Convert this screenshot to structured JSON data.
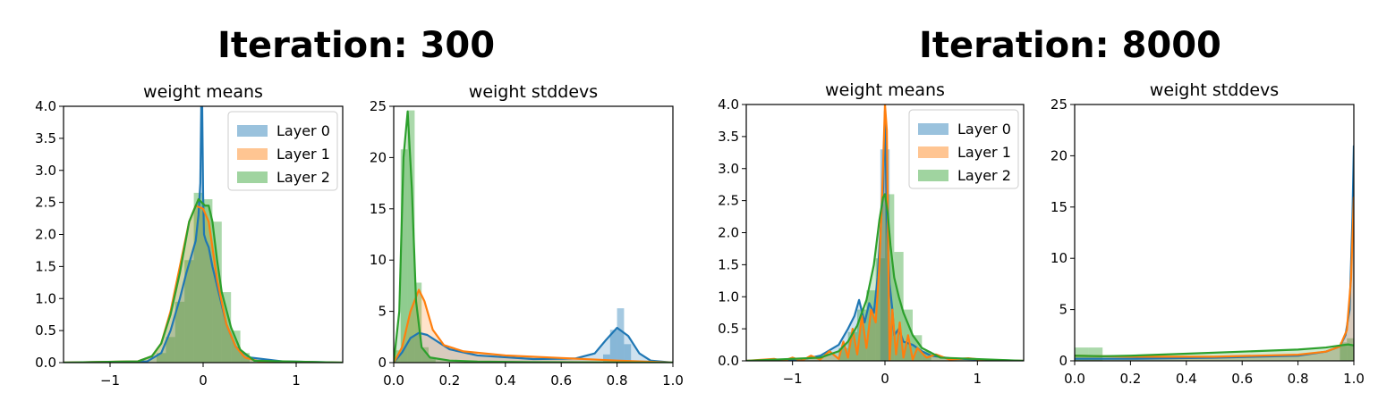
{
  "figures": [
    {
      "title": "Iteration: 300"
    },
    {
      "title": "Iteration: 8000"
    }
  ],
  "colors": {
    "layer0": "#1f77b4",
    "layer1": "#ff7f0e",
    "layer2": "#2ca02c"
  },
  "chart_data": [
    {
      "type": "area",
      "title": "weight means",
      "xlabel": "",
      "ylabel": "",
      "xlim": [
        -1.5,
        1.5
      ],
      "ylim": [
        0,
        4
      ],
      "xticks": [
        -1,
        0,
        1
      ],
      "xticklabels": [
        "−1",
        "0",
        "1"
      ],
      "yticks": [
        0,
        0.5,
        1,
        1.5,
        2,
        2.5,
        3,
        3.5,
        4
      ],
      "yticklabels": [
        "0.0",
        "0.5",
        "1.0",
        "1.5",
        "2.0",
        "2.5",
        "3.0",
        "3.5",
        "4.0"
      ],
      "legend": "top-right",
      "legend_labels": [
        "Layer 0",
        "Layer 1",
        "Layer 2"
      ],
      "series": [
        {
          "name": "Layer 0",
          "x": [
            -1.5,
            -0.6,
            -0.45,
            -0.35,
            -0.25,
            -0.18,
            -0.12,
            -0.08,
            -0.05,
            -0.03,
            -0.02,
            -0.01,
            0,
            0.01,
            0.03,
            0.06,
            0.1,
            0.15,
            0.25,
            0.35,
            0.5,
            0.85,
            1.5
          ],
          "y": [
            0,
            0.02,
            0.15,
            0.5,
            1.0,
            1.4,
            1.7,
            1.9,
            2.3,
            2.8,
            4.2,
            4.2,
            2.6,
            2.0,
            1.9,
            1.8,
            1.5,
            1.2,
            0.6,
            0.25,
            0.08,
            0.02,
            0
          ]
        },
        {
          "name": "Layer 1",
          "x": [
            -1.5,
            -0.7,
            -0.55,
            -0.45,
            -0.35,
            -0.25,
            -0.15,
            -0.08,
            0,
            0.06,
            0.1,
            0.15,
            0.25,
            0.35,
            0.45,
            0.6,
            1.5
          ],
          "y": [
            0,
            0.02,
            0.1,
            0.3,
            0.8,
            1.5,
            2.2,
            2.45,
            2.4,
            2.2,
            1.8,
            1.3,
            0.6,
            0.25,
            0.08,
            0.02,
            0
          ]
        },
        {
          "name": "Layer 2",
          "x": [
            -1.5,
            -0.7,
            -0.55,
            -0.45,
            -0.35,
            -0.25,
            -0.15,
            -0.05,
            0.02,
            0.06,
            0.1,
            0.15,
            0.2,
            0.3,
            0.4,
            0.55,
            1.5
          ],
          "y": [
            0,
            0.02,
            0.1,
            0.3,
            0.75,
            1.4,
            2.2,
            2.55,
            2.45,
            2.45,
            2.2,
            1.6,
            1.1,
            0.55,
            0.2,
            0.03,
            0
          ]
        }
      ],
      "histograms": [
        {
          "name": "Layer 2",
          "x": [
            -0.5,
            -0.4,
            -0.3,
            -0.2,
            -0.1,
            0,
            0.1,
            0.2,
            0.3,
            0.4
          ],
          "y": [
            0.15,
            0.4,
            0.95,
            1.6,
            2.65,
            2.55,
            2.2,
            1.1,
            0.5,
            0.15
          ]
        }
      ]
    },
    {
      "type": "area",
      "title": "weight stddevs",
      "xlabel": "",
      "ylabel": "",
      "xlim": [
        0,
        1
      ],
      "ylim": [
        0,
        25
      ],
      "xticks": [
        0,
        0.2,
        0.4,
        0.6,
        0.8,
        1.0
      ],
      "xticklabels": [
        "0.0",
        "0.2",
        "0.4",
        "0.6",
        "0.8",
        "1.0"
      ],
      "yticks": [
        0,
        5,
        10,
        15,
        20,
        25
      ],
      "yticklabels": [
        "0",
        "5",
        "10",
        "15",
        "20",
        "25"
      ],
      "series": [
        {
          "name": "Layer 0",
          "x": [
            0,
            0.03,
            0.06,
            0.09,
            0.12,
            0.16,
            0.2,
            0.3,
            0.5,
            0.65,
            0.72,
            0.76,
            0.8,
            0.84,
            0.88,
            0.92,
            1.0
          ],
          "y": [
            0,
            1.0,
            2.4,
            2.9,
            2.7,
            2.0,
            1.3,
            0.7,
            0.35,
            0.4,
            0.9,
            2.2,
            3.4,
            2.6,
            0.9,
            0.2,
            0
          ]
        },
        {
          "name": "Layer 1",
          "x": [
            0,
            0.03,
            0.06,
            0.09,
            0.11,
            0.14,
            0.18,
            0.25,
            0.4,
            0.6,
            0.8,
            1.0
          ],
          "y": [
            0,
            1.5,
            5.0,
            7.1,
            6.0,
            3.2,
            1.7,
            1.1,
            0.7,
            0.45,
            0.2,
            0
          ]
        },
        {
          "name": "Layer 2",
          "x": [
            0,
            0.02,
            0.035,
            0.05,
            0.065,
            0.08,
            0.1,
            0.13,
            0.2,
            0.3,
            0.5,
            1.0
          ],
          "y": [
            0,
            5.0,
            20.0,
            24.5,
            17.0,
            6.0,
            1.5,
            0.5,
            0.2,
            0.1,
            0.05,
            0
          ]
        }
      ],
      "histograms": [
        {
          "name": "Layer 2",
          "x": [
            0.0,
            0.025,
            0.05,
            0.075,
            0.1,
            0.125
          ],
          "y": [
            1.2,
            20.8,
            24.6,
            7.8,
            1.5,
            0.5
          ]
        },
        {
          "name": "Layer 0",
          "x": [
            0.75,
            0.775,
            0.8,
            0.825
          ],
          "y": [
            0.8,
            3.2,
            5.3,
            1.8
          ]
        }
      ]
    },
    {
      "type": "area",
      "title": "weight means",
      "xlabel": "",
      "ylabel": "",
      "xlim": [
        -1.5,
        1.5
      ],
      "ylim": [
        0,
        4
      ],
      "xticks": [
        -1,
        0,
        1
      ],
      "xticklabels": [
        "−1",
        "0",
        "1"
      ],
      "yticks": [
        0,
        0.5,
        1,
        1.5,
        2,
        2.5,
        3,
        3.5,
        4
      ],
      "yticklabels": [
        "0.0",
        "0.5",
        "1.0",
        "1.5",
        "2.0",
        "2.5",
        "3.0",
        "3.5",
        "4.0"
      ],
      "legend": "top-right",
      "legend_labels": [
        "Layer 0",
        "Layer 1",
        "Layer 2"
      ],
      "series": [
        {
          "name": "Layer 0",
          "x": [
            -1.5,
            -0.9,
            -0.7,
            -0.5,
            -0.4,
            -0.33,
            -0.28,
            -0.22,
            -0.17,
            -0.12,
            -0.08,
            -0.05,
            -0.02,
            0,
            0.02,
            0.05,
            0.08,
            0.1,
            0.15,
            0.2,
            0.3,
            0.4,
            0.5,
            0.7,
            1.0,
            1.5
          ],
          "y": [
            0,
            0.02,
            0.08,
            0.25,
            0.5,
            0.7,
            0.95,
            0.6,
            0.9,
            0.75,
            1.3,
            2.0,
            2.7,
            3.9,
            2.2,
            1.2,
            0.8,
            0.4,
            0.5,
            0.3,
            0.25,
            0.15,
            0.08,
            0.04,
            0.02,
            0
          ]
        },
        {
          "name": "Layer 1",
          "x": [
            -1.5,
            -1.2,
            -1.1,
            -1.0,
            -0.9,
            -0.8,
            -0.7,
            -0.6,
            -0.5,
            -0.45,
            -0.4,
            -0.35,
            -0.3,
            -0.25,
            -0.2,
            -0.15,
            -0.1,
            -0.06,
            -0.03,
            0,
            0.02,
            0.05,
            0.08,
            0.12,
            0.16,
            0.2,
            0.25,
            0.3,
            0.35,
            0.45,
            0.55,
            0.7,
            0.9,
            1.1,
            1.5
          ],
          "y": [
            0,
            0.03,
            0,
            0.05,
            0,
            0.08,
            0.02,
            0.15,
            0.03,
            0.3,
            0.05,
            0.5,
            0.1,
            0.7,
            0.2,
            0.8,
            0.6,
            1.5,
            2.6,
            4.0,
            3.6,
            0.0,
            0.8,
            0.1,
            0.6,
            0.05,
            0.4,
            0.02,
            0.2,
            0.05,
            0.1,
            0.02,
            0.04,
            0.01,
            0
          ]
        },
        {
          "name": "Layer 2",
          "x": [
            -1.5,
            -0.7,
            -0.5,
            -0.4,
            -0.3,
            -0.2,
            -0.12,
            -0.06,
            -0.02,
            0,
            0.03,
            0.06,
            0.1,
            0.15,
            0.2,
            0.3,
            0.4,
            0.6,
            1.5
          ],
          "y": [
            0,
            0.05,
            0.15,
            0.3,
            0.55,
            0.95,
            1.5,
            2.2,
            2.55,
            2.6,
            2.3,
            1.8,
            1.3,
            1.0,
            0.75,
            0.4,
            0.2,
            0.05,
            0
          ]
        }
      ],
      "histograms": [
        {
          "name": "Layer 2",
          "x": [
            -0.5,
            -0.4,
            -0.3,
            -0.2,
            -0.1,
            0,
            0.1,
            0.2,
            0.3,
            0.4
          ],
          "y": [
            0.2,
            0.45,
            0.8,
            1.1,
            1.6,
            2.6,
            1.7,
            0.8,
            0.4,
            0.15
          ]
        },
        {
          "name": "Layer 0",
          "x": [
            -0.05,
            0
          ],
          "y": [
            3.3,
            3.3
          ]
        }
      ]
    },
    {
      "type": "area",
      "title": "weight stddevs",
      "xlabel": "",
      "ylabel": "",
      "xlim": [
        0,
        1
      ],
      "ylim": [
        0,
        25
      ],
      "xticks": [
        0,
        0.2,
        0.4,
        0.6,
        0.8,
        1.0
      ],
      "xticklabels": [
        "0.0",
        "0.2",
        "0.4",
        "0.6",
        "0.8",
        "1.0"
      ],
      "yticks": [
        0,
        5,
        10,
        15,
        20,
        25
      ],
      "yticklabels": [
        "0",
        "5",
        "10",
        "15",
        "20",
        "25"
      ],
      "series": [
        {
          "name": "Layer 0",
          "x": [
            0,
            0.2,
            0.5,
            0.8,
            0.9,
            0.95,
            0.97,
            0.985,
            0.995,
            1.0
          ],
          "y": [
            0.2,
            0.2,
            0.3,
            0.5,
            0.9,
            1.4,
            2.5,
            5.0,
            14.0,
            21.0
          ]
        },
        {
          "name": "Layer 1",
          "x": [
            0,
            0.2,
            0.5,
            0.8,
            0.9,
            0.95,
            0.975,
            0.99,
            1.0
          ],
          "y": [
            0.5,
            0.4,
            0.4,
            0.6,
            0.9,
            1.4,
            3.0,
            8.0,
            16.0
          ]
        },
        {
          "name": "Layer 2",
          "x": [
            0,
            0.1,
            0.2,
            0.4,
            0.6,
            0.8,
            0.9,
            0.95,
            0.98,
            1.0
          ],
          "y": [
            0.5,
            0.45,
            0.5,
            0.7,
            0.9,
            1.1,
            1.3,
            1.5,
            1.6,
            1.5
          ]
        }
      ],
      "histograms": [
        {
          "name": "Layer 2",
          "x": [
            0.0,
            0.05
          ],
          "y": [
            1.3,
            1.3
          ]
        },
        {
          "name": "Layer 2",
          "x": [
            0.95,
            0.975
          ],
          "y": [
            1.8,
            2.2
          ]
        }
      ]
    }
  ]
}
